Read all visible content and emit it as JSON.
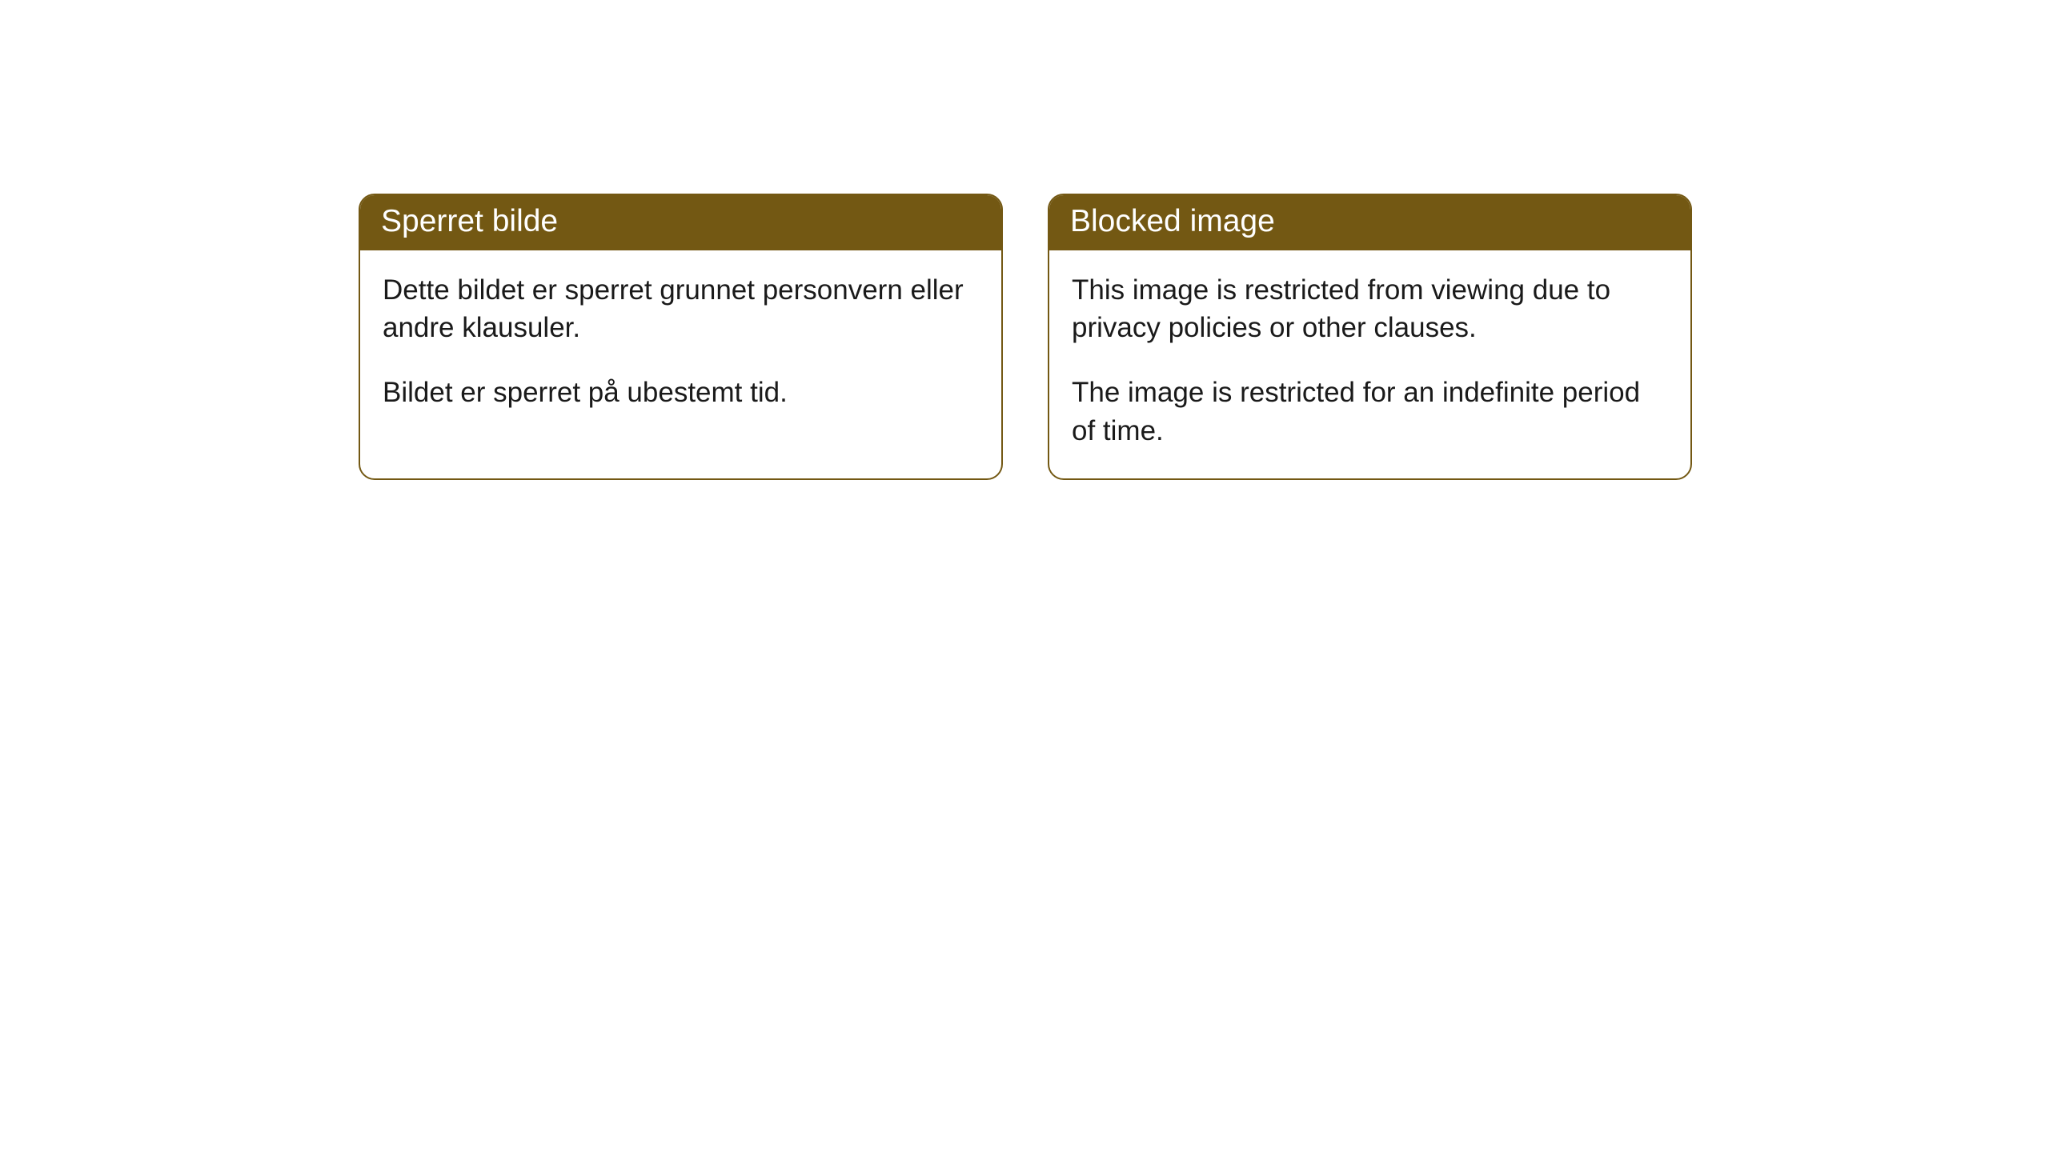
{
  "cards": [
    {
      "title": "Sperret bilde",
      "paragraph1": "Dette bildet er sperret grunnet personvern eller andre klausuler.",
      "paragraph2": "Bildet er sperret på ubestemt tid."
    },
    {
      "title": "Blocked image",
      "paragraph1": "This image is restricted from viewing due to privacy policies or other clauses.",
      "paragraph2": "The image is restricted for an indefinite period of time."
    }
  ],
  "style": {
    "header_bg": "#735813",
    "header_text_color": "#ffffff",
    "border_color": "#735813",
    "body_text_color": "#1a1a1a",
    "background_color": "#ffffff",
    "border_radius": 20,
    "header_fontsize": 39,
    "body_fontsize": 35
  }
}
